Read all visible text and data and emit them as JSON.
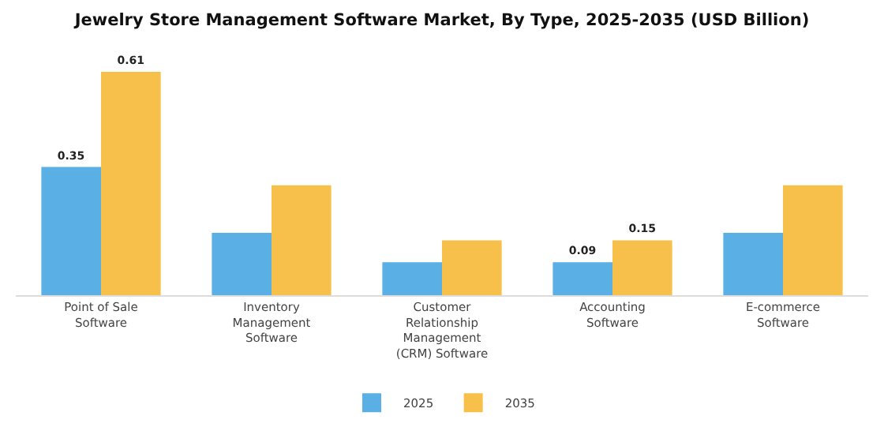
{
  "chart_data": {
    "type": "bar",
    "title": "Jewelry Store Management Software Market, By Type, 2025-2035 (USD Billion)",
    "categories": [
      "Point of Sale Software",
      "Inventory Management Software",
      "Customer Relationship Management (CRM) Software",
      "Accounting Software",
      "E-commerce Software"
    ],
    "series": [
      {
        "name": "2025",
        "color": "#5ab0e4",
        "values": [
          0.35,
          0.17,
          0.09,
          0.09,
          0.17
        ],
        "value_labels": [
          "0.35",
          null,
          null,
          "0.09",
          null
        ]
      },
      {
        "name": "2035",
        "color": "#f7c04a",
        "values": [
          0.61,
          0.3,
          0.15,
          0.15,
          0.3
        ],
        "value_labels": [
          "0.61",
          null,
          null,
          "0.15",
          null
        ]
      }
    ],
    "legend": "bottom"
  }
}
